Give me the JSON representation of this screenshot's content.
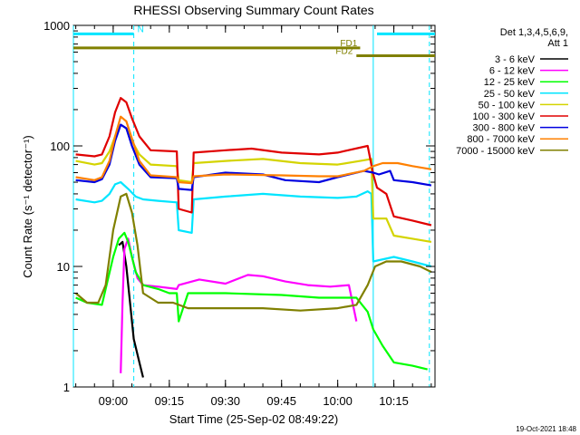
{
  "chart_data": {
    "type": "line",
    "title": "RHESSI Observing Summary Count Rates",
    "xlabel": "Start Time (25-Sep-02 08:49:22)",
    "ylabel": "Count Rate (s⁻¹ detector⁻¹)",
    "ylog": true,
    "ylim": [
      1,
      1000
    ],
    "xlim": [
      "08:49:22",
      "10:26:00"
    ],
    "x_ticks": [
      "09:00",
      "09:15",
      "09:30",
      "09:45",
      "10:00",
      "10:15"
    ],
    "y_ticks": [
      "1",
      "10",
      "100",
      "1000"
    ],
    "footer": "19-Oct-2021 18:48",
    "legend_header": [
      "Det 1,3,4,5,6,9,",
      "Att 1"
    ],
    "legend_position": "right",
    "annotations": {
      "flags": [
        {
          "label": "N",
          "start": "08:49:22",
          "end": "09:05:30",
          "color": "#00e5ff",
          "y": 850
        },
        {
          "label": "N",
          "start": "10:10:30",
          "end": "10:26:00",
          "color": "#00e5ff",
          "y": 850
        },
        {
          "label": "FD1",
          "start": "08:49:22",
          "end": "10:06:00",
          "color": "#808000",
          "y": 650
        },
        {
          "label": "FD2",
          "start": "10:05:00",
          "end": "10:26:00",
          "color": "#808000",
          "y": 560
        }
      ],
      "vertical_lines": [
        {
          "time": "08:49:22",
          "style": "solid",
          "color": "#00e5ff"
        },
        {
          "time": "09:05:30",
          "style": "dashed",
          "color": "#00e5ff"
        },
        {
          "time": "10:09:30",
          "style": "solid",
          "color": "#00e5ff"
        },
        {
          "time": "10:24:30",
          "style": "dashed",
          "color": "#00e5ff"
        }
      ]
    },
    "series": [
      {
        "name": "3 - 6 keV",
        "color": "#000000",
        "x": [
          "09:01:30",
          "09:02:30",
          "09:03:30",
          "09:04:30",
          "09:05:30",
          "09:07:00",
          "09:08:00"
        ],
        "y": [
          15,
          16,
          10,
          5,
          2.5,
          1.6,
          1.2
        ]
      },
      {
        "name": "6 - 12 keV",
        "color": "#ff00ff",
        "x": [
          "09:02:00",
          "09:02:30",
          "09:03:00",
          "09:04:00",
          "09:05:00",
          "09:06:30",
          "09:08:00",
          "09:12:00",
          "09:17:00",
          "09:17:30",
          "09:23:00",
          "09:30:00",
          "09:36:00",
          "09:40:00",
          "09:46:00",
          "09:52:00",
          "09:58:00",
          "10:03:00",
          "10:05:00"
        ],
        "y": [
          1.3,
          5,
          14,
          17,
          12,
          8,
          7,
          6.8,
          6.5,
          7,
          7.8,
          7.2,
          8.5,
          8.3,
          7.5,
          7,
          6.8,
          7,
          3.5
        ]
      },
      {
        "name": "12 - 25 keV",
        "color": "#00ff00",
        "x": [
          "08:50:00",
          "08:53:00",
          "08:57:00",
          "09:00:00",
          "09:01:30",
          "09:03:00",
          "09:04:00",
          "09:05:00",
          "09:06:00",
          "09:08:00",
          "09:12:00",
          "09:15:00",
          "09:17:00",
          "09:17:30",
          "09:20:00",
          "09:30:00",
          "09:45:00",
          "09:55:00",
          "10:00:00",
          "10:05:00",
          "10:08:00",
          "10:09:30",
          "10:12:00",
          "10:15:00",
          "10:20:00",
          "10:24:00"
        ],
        "y": [
          5.5,
          5,
          4.8,
          12,
          17,
          19,
          16,
          12,
          9,
          7,
          6.5,
          6,
          6,
          3.5,
          6,
          6,
          5.8,
          5.5,
          5.5,
          5.5,
          4.2,
          3,
          2.2,
          1.6,
          1.5,
          1.4
        ]
      },
      {
        "name": "25 - 50 keV",
        "color": "#00e5ff",
        "x": [
          "08:50:00",
          "08:55:00",
          "08:57:00",
          "08:59:00",
          "09:00:30",
          "09:02:00",
          "09:04:00",
          "09:06:00",
          "09:08:00",
          "09:12:00",
          "09:17:00",
          "09:17:30",
          "09:21:00",
          "09:21:30",
          "09:30:00",
          "09:40:00",
          "09:50:00",
          "10:00:00",
          "10:05:00",
          "10:08:00",
          "10:09:00",
          "10:09:30",
          "10:15:00",
          "10:20:00",
          "10:25:00"
        ],
        "y": [
          36,
          34,
          35,
          40,
          48,
          50,
          44,
          38,
          36,
          35,
          34,
          20,
          19,
          36,
          38,
          40,
          38,
          37,
          38,
          42,
          40,
          11,
          12,
          11,
          10
        ]
      },
      {
        "name": "50 - 100 keV",
        "color": "#d4d400",
        "x": [
          "08:50:00",
          "08:55:00",
          "08:57:00",
          "08:59:00",
          "09:00:30",
          "09:02:00",
          "09:03:30",
          "09:05:00",
          "09:07:00",
          "09:10:00",
          "09:17:00",
          "09:17:30",
          "09:21:00",
          "09:21:30",
          "09:30:00",
          "09:40:00",
          "09:50:00",
          "10:00:00",
          "10:06:00",
          "10:09:00",
          "10:09:30",
          "10:13:00",
          "10:15:00",
          "10:20:00",
          "10:25:00"
        ],
        "y": [
          75,
          70,
          72,
          90,
          120,
          150,
          140,
          110,
          85,
          70,
          68,
          52,
          50,
          72,
          75,
          78,
          72,
          70,
          75,
          78,
          25,
          25,
          18,
          17,
          16
        ]
      },
      {
        "name": "100 - 300 keV",
        "color": "#e00000",
        "x": [
          "08:50:00",
          "08:55:00",
          "08:57:00",
          "08:59:00",
          "09:00:30",
          "09:02:00",
          "09:03:30",
          "09:05:00",
          "09:07:00",
          "09:10:00",
          "09:17:00",
          "09:17:30",
          "09:21:00",
          "09:21:30",
          "09:30:00",
          "09:37:00",
          "09:45:00",
          "09:55:00",
          "10:00:00",
          "10:08:00",
          "10:09:30",
          "10:10:30",
          "10:13:00",
          "10:15:00",
          "10:20:00",
          "10:25:00"
        ],
        "y": [
          85,
          82,
          85,
          120,
          190,
          250,
          230,
          170,
          120,
          92,
          90,
          30,
          28,
          88,
          92,
          95,
          88,
          85,
          88,
          100,
          58,
          45,
          40,
          26,
          24,
          22
        ]
      },
      {
        "name": "300 - 800 keV",
        "color": "#0000e0",
        "x": [
          "08:50:00",
          "08:55:00",
          "08:57:00",
          "08:59:00",
          "09:00:30",
          "09:02:00",
          "09:03:30",
          "09:05:00",
          "09:07:00",
          "09:10:00",
          "09:17:00",
          "09:17:30",
          "09:21:00",
          "09:21:30",
          "09:30:00",
          "09:40:00",
          "09:46:00",
          "09:55:00",
          "10:00:00",
          "10:07:00",
          "10:09:30",
          "10:11:00",
          "10:14:00",
          "10:15:00",
          "10:20:00",
          "10:25:00"
        ],
        "y": [
          52,
          50,
          53,
          70,
          110,
          150,
          140,
          100,
          70,
          55,
          54,
          44,
          43,
          55,
          60,
          58,
          52,
          50,
          55,
          62,
          60,
          58,
          62,
          52,
          50,
          47
        ]
      },
      {
        "name": "800 - 7000 keV",
        "color": "#ff8000",
        "x": [
          "08:50:00",
          "08:55:00",
          "08:57:00",
          "08:59:00",
          "09:00:30",
          "09:02:00",
          "09:03:30",
          "09:05:00",
          "09:07:00",
          "09:10:00",
          "09:17:00",
          "09:17:30",
          "09:21:00",
          "09:21:30",
          "09:30:00",
          "09:45:00",
          "09:55:00",
          "10:00:00",
          "10:07:00",
          "10:09:30",
          "10:12:00",
          "10:16:00",
          "10:20:00",
          "10:25:00"
        ],
        "y": [
          55,
          52,
          55,
          75,
          120,
          175,
          160,
          115,
          75,
          57,
          55,
          50,
          49,
          56,
          58,
          57,
          56,
          56,
          62,
          68,
          72,
          72,
          68,
          64
        ]
      },
      {
        "name": "7000 - 15000 keV",
        "color": "#808000",
        "x": [
          "08:50:00",
          "08:53:00",
          "08:56:00",
          "08:58:00",
          "09:00:00",
          "09:02:00",
          "09:03:30",
          "09:05:00",
          "09:06:30",
          "09:08:00",
          "09:12:00",
          "09:16:00",
          "09:20:00",
          "09:30:00",
          "09:40:00",
          "09:50:00",
          "10:00:00",
          "10:05:00",
          "10:08:00",
          "10:10:00",
          "10:13:00",
          "10:17:00",
          "10:22:00",
          "10:25:00"
        ],
        "y": [
          6,
          5,
          5,
          7,
          20,
          38,
          40,
          28,
          15,
          6,
          5,
          5,
          4.5,
          4.5,
          4.5,
          4.3,
          4.5,
          4.8,
          7,
          10,
          11,
          11,
          10,
          9
        ]
      }
    ]
  }
}
